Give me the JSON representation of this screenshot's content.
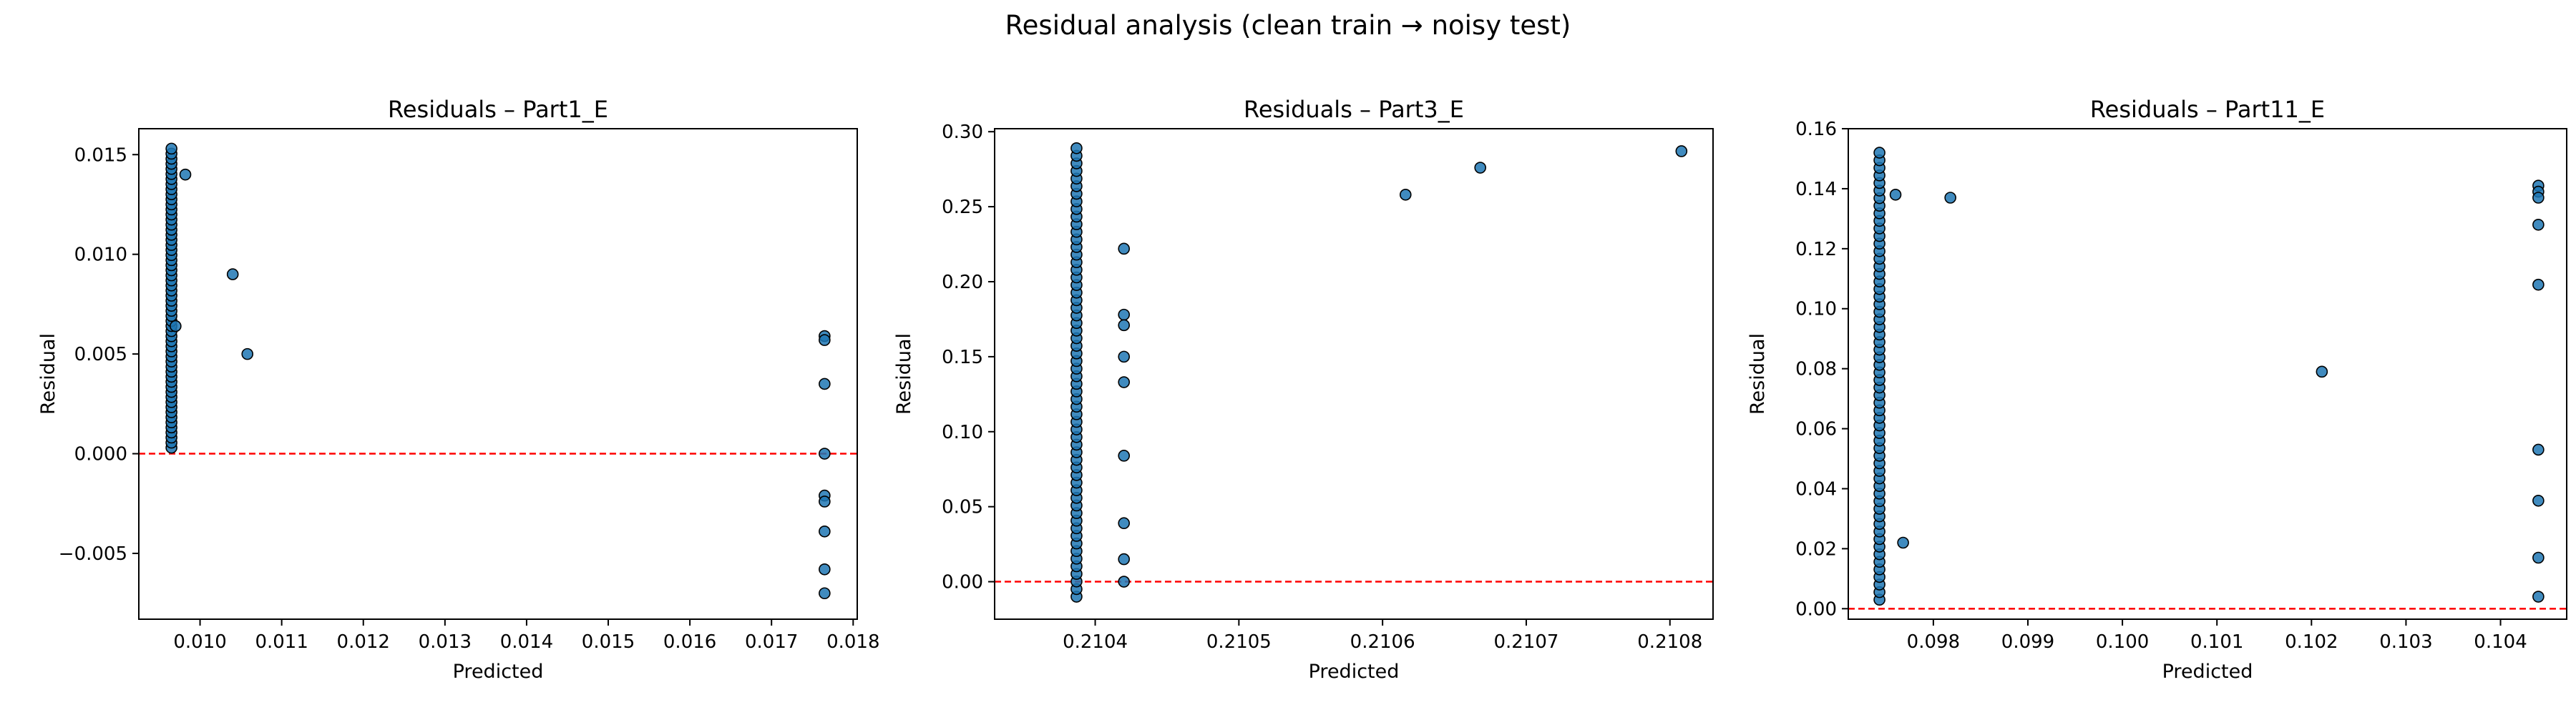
{
  "figure": {
    "title": "Residual analysis (clean train → noisy test)"
  },
  "style": {
    "marker_fill": "#1f77b4",
    "marker_edge": "#000000",
    "zero_line": "#ff0000",
    "axis": "#000000"
  },
  "chart_data": [
    {
      "type": "scatter",
      "title": "Residuals – Part1_E",
      "xlabel": "Predicted",
      "ylabel": "Residual",
      "xlim": [
        0.00925,
        0.01805
      ],
      "ylim": [
        -0.0083,
        0.0163
      ],
      "xticks": [
        0.01,
        0.011,
        0.012,
        0.013,
        0.014,
        0.015,
        0.016,
        0.017,
        0.018
      ],
      "xtick_labels": [
        "0.010",
        "0.011",
        "0.012",
        "0.013",
        "0.014",
        "0.015",
        "0.016",
        "0.017",
        "0.018"
      ],
      "yticks": [
        -0.005,
        0.0,
        0.005,
        0.01,
        0.015
      ],
      "ytick_labels": [
        "−0.005",
        "0.000",
        "0.005",
        "0.010",
        "0.015"
      ],
      "zero_line": 0,
      "cluster": {
        "x": 0.00965,
        "y_min": 0.0003,
        "y_max": 0.0153,
        "count": 60
      },
      "points": [
        [
          0.00982,
          0.014
        ],
        [
          0.0104,
          0.009
        ],
        [
          0.01058,
          0.005
        ],
        [
          0.0097,
          0.0064
        ],
        [
          0.01765,
          0.0059
        ],
        [
          0.01765,
          0.0057
        ],
        [
          0.01765,
          0.0035
        ],
        [
          0.01765,
          0.0
        ],
        [
          0.01765,
          -0.0021
        ],
        [
          0.01765,
          -0.0024
        ],
        [
          0.01765,
          -0.0039
        ],
        [
          0.01765,
          -0.0058
        ],
        [
          0.01765,
          -0.007
        ]
      ]
    },
    {
      "type": "scatter",
      "title": "Residuals – Part3_E",
      "xlabel": "Predicted",
      "ylabel": "Residual",
      "xlim": [
        0.21033,
        0.21083
      ],
      "ylim": [
        -0.025,
        0.302
      ],
      "xticks": [
        0.2104,
        0.2105,
        0.2106,
        0.2107,
        0.2108
      ],
      "xtick_labels": [
        "0.2104",
        "0.2105",
        "0.2106",
        "0.2107",
        "0.2108"
      ],
      "yticks": [
        0.0,
        0.05,
        0.1,
        0.15,
        0.2,
        0.25,
        0.3
      ],
      "ytick_labels": [
        "0.00",
        "0.05",
        "0.10",
        "0.15",
        "0.20",
        "0.25",
        "0.30"
      ],
      "zero_line": 0,
      "cluster": {
        "x": 0.210387,
        "y_min": -0.01,
        "y_max": 0.289,
        "count": 60
      },
      "points": [
        [
          0.21042,
          0.222
        ],
        [
          0.21042,
          0.178
        ],
        [
          0.21042,
          0.171
        ],
        [
          0.21042,
          0.15
        ],
        [
          0.21042,
          0.133
        ],
        [
          0.21042,
          0.084
        ],
        [
          0.21042,
          0.039
        ],
        [
          0.21042,
          0.015
        ],
        [
          0.21042,
          0.0
        ],
        [
          0.210616,
          0.258
        ],
        [
          0.210668,
          0.276
        ],
        [
          0.210808,
          0.287
        ]
      ]
    },
    {
      "type": "scatter",
      "title": "Residuals – Part11_E",
      "xlabel": "Predicted",
      "ylabel": "Residual",
      "xlim": [
        0.0971,
        0.1047
      ],
      "ylim": [
        -0.0035,
        0.16
      ],
      "xticks": [
        0.098,
        0.099,
        0.1,
        0.101,
        0.102,
        0.103,
        0.104
      ],
      "xtick_labels": [
        "0.098",
        "0.099",
        "0.100",
        "0.101",
        "0.102",
        "0.103",
        "0.104"
      ],
      "yticks": [
        0.0,
        0.02,
        0.04,
        0.06,
        0.08,
        0.1,
        0.12,
        0.14,
        0.16
      ],
      "ytick_labels": [
        "0.00",
        "0.02",
        "0.04",
        "0.06",
        "0.08",
        "0.10",
        "0.12",
        "0.14",
        "0.16"
      ],
      "zero_line": 0,
      "cluster": {
        "x": 0.09743,
        "y_min": 0.003,
        "y_max": 0.152,
        "count": 60
      },
      "points": [
        [
          0.0976,
          0.138
        ],
        [
          0.09818,
          0.137
        ],
        [
          0.09768,
          0.022
        ],
        [
          0.10211,
          0.079
        ],
        [
          0.1044,
          0.141
        ],
        [
          0.1044,
          0.139
        ],
        [
          0.1044,
          0.137
        ],
        [
          0.1044,
          0.128
        ],
        [
          0.1044,
          0.108
        ],
        [
          0.1044,
          0.053
        ],
        [
          0.1044,
          0.036
        ],
        [
          0.1044,
          0.017
        ],
        [
          0.1044,
          0.004
        ]
      ]
    }
  ]
}
